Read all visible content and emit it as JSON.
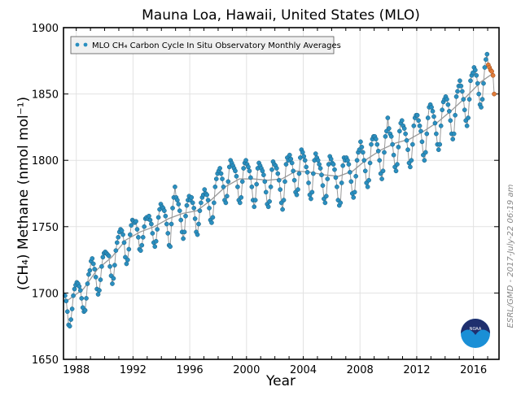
{
  "chart_data": {
    "type": "scatter",
    "title": "Mauna Loa, Hawaii, United States (MLO)",
    "xlabel": "Year",
    "ylabel": "(CH₄) Methane (nmol mol⁻¹)",
    "xlim": [
      1987.1,
      2017.8
    ],
    "ylim": [
      1650,
      1900
    ],
    "xticks": [
      "1988",
      "1992",
      "1996",
      "2000",
      "2004",
      "2008",
      "2012",
      "2016"
    ],
    "yticks": [
      "1650",
      "1700",
      "1750",
      "1800",
      "1850",
      "1900"
    ],
    "grid": true,
    "legend": {
      "position": "top-left",
      "entries": [
        "MLO CH₄ Carbon Cycle In Situ Observatory Monthly Averages"
      ]
    },
    "credit": "ESRL/GMD - 2017-July-22 06:19 am",
    "colors": {
      "monthly": "#2a8fc0",
      "preliminary": "#e07b39",
      "trend": "#999999",
      "connector": "#9a9a9a"
    },
    "series": [
      {
        "name": "MLO CH₄ Carbon Cycle In Situ Observatory Monthly Averages",
        "kind": "monthly",
        "data": [
          {
            "year": 1987,
            "values": [
              null,
              null,
              1698,
              1694,
              1686,
              1676,
              1675,
              1680,
              1688,
              1698,
              1703,
              1706
            ]
          },
          {
            "year": 1988,
            "values": [
              1708,
              1707,
              1705,
              1702,
              1696,
              1689,
              1686,
              1687,
              1696,
              1707,
              1714,
              1717
            ]
          },
          {
            "year": 1989,
            "values": [
              1724,
              1726,
              1722,
              1718,
              1712,
              1703,
              1699,
              1702,
              1710,
              1720,
              1727,
              1730
            ]
          },
          {
            "year": 1990,
            "values": [
              1731,
              1730,
              1729,
              1728,
              1720,
              1713,
              1707,
              1711,
              1721,
              1732,
              1738,
              1742
            ]
          },
          {
            "year": 1991,
            "values": [
              1746,
              1748,
              1747,
              1744,
              1738,
              1727,
              1722,
              1725,
              1733,
              1744,
              1751,
              1755
            ]
          },
          {
            "year": 1992,
            "values": [
              1754,
              1753,
              1754,
              1748,
              1742,
              1733,
              1732,
              1736,
              1742,
              1750,
              1756,
              1757
            ]
          },
          {
            "year": 1993,
            "values": [
              1756,
              1758,
              1755,
              1752,
              1745,
              1738,
              1735,
              1739,
              1748,
              1757,
              1763,
              1767
            ]
          },
          {
            "year": 1994,
            "values": [
              1765,
              1764,
              1762,
              1758,
              1752,
              1745,
              1736,
              1735,
              1752,
              1764,
              1772,
              1780
            ]
          },
          {
            "year": 1995,
            "values": [
              1772,
              1770,
              1767,
              1762,
              1755,
              1746,
              1741,
              1746,
              1758,
              1766,
              1770,
              1773
            ]
          },
          {
            "year": 1996,
            "values": [
              1770,
              1772,
              1768,
              1764,
              1756,
              1746,
              1744,
              1752,
              1762,
              1768,
              1772,
              1774
            ]
          },
          {
            "year": 1997,
            "values": [
              1778,
              1775,
              1774,
              1770,
              1764,
              1755,
              1753,
              1757,
              1768,
              1780,
              1786,
              1790
            ]
          },
          {
            "year": 1998,
            "values": [
              1792,
              1794,
              1790,
              1786,
              1780,
              1770,
              1768,
              1773,
              1784,
              1795,
              1800,
              1798
            ]
          },
          {
            "year": 1999,
            "values": [
              1796,
              1794,
              1792,
              1788,
              1780,
              1770,
              1768,
              1772,
              1784,
              1794,
              1798,
              1800
            ]
          },
          {
            "year": 2000,
            "values": [
              1797,
              1795,
              1792,
              1787,
              1780,
              1770,
              1765,
              1770,
              1782,
              1794,
              1798,
              1796
            ]
          },
          {
            "year": 2001,
            "values": [
              1794,
              1792,
              1789,
              1784,
              1776,
              1767,
              1765,
              1769,
              1780,
              1793,
              1799,
              1797
            ]
          },
          {
            "year": 2002,
            "values": [
              1796,
              1794,
              1790,
              1785,
              1778,
              1768,
              1763,
              1770,
              1784,
              1797,
              1802,
              1800
            ]
          },
          {
            "year": 2003,
            "values": [
              1804,
              1801,
              1798,
              1792,
              1785,
              1776,
              1774,
              1778,
              1790,
              1802,
              1808,
              1806
            ]
          },
          {
            "year": 2004,
            "values": [
              1803,
              1800,
              1795,
              1791,
              1783,
              1774,
              1771,
              1776,
              1790,
              1800,
              1805,
              1802
            ]
          },
          {
            "year": 2005,
            "values": [
              1800,
              1797,
              1794,
              1789,
              1781,
              1771,
              1768,
              1773,
              1786,
              1797,
              1803,
              1801
            ]
          },
          {
            "year": 2006,
            "values": [
              1798,
              1797,
              1793,
              1787,
              1780,
              1770,
              1766,
              1768,
              1783,
              1796,
              1802,
              1800
            ]
          },
          {
            "year": 2007,
            "values": [
              1802,
              1800,
              1797,
              1791,
              1784,
              1775,
              1772,
              1776,
              1788,
              1800,
              1806,
              1808
            ]
          },
          {
            "year": 2008,
            "values": [
              1814,
              1810,
              1806,
              1800,
              1792,
              1783,
              1780,
              1785,
              1798,
              1812,
              1816,
              1818
            ]
          },
          {
            "year": 2009,
            "values": [
              1818,
              1816,
              1812,
              1807,
              1800,
              1790,
              1786,
              1792,
              1806,
              1818,
              1822,
              1832
            ]
          },
          {
            "year": 2010,
            "values": [
              1824,
              1820,
              1818,
              1812,
              1804,
              1795,
              1792,
              1797,
              1810,
              1822,
              1828,
              1830
            ]
          },
          {
            "year": 2011,
            "values": [
              1826,
              1824,
              1820,
              1815,
              1808,
              1798,
              1795,
              1800,
              1812,
              1826,
              1832,
              1834
            ]
          },
          {
            "year": 2012,
            "values": [
              1834,
              1830,
              1826,
              1822,
              1814,
              1804,
              1800,
              1806,
              1820,
              1832,
              1840,
              1842
            ]
          },
          {
            "year": 2013,
            "values": [
              1840,
              1837,
              1833,
              1828,
              1820,
              1812,
              1808,
              1812,
              1826,
              1838,
              1844,
              1846
            ]
          },
          {
            "year": 2014,
            "values": [
              1848,
              1846,
              1842,
              1837,
              1830,
              1820,
              1816,
              1820,
              1834,
              1848,
              1852,
              1856
            ]
          },
          {
            "year": 2015,
            "values": [
              1860,
              1856,
              1852,
              1846,
              1838,
              1830,
              1826,
              1832,
              1846,
              1860,
              1864,
              1866
            ]
          },
          {
            "year": 2016,
            "values": [
              1870,
              1868,
              1864,
              1858,
              1850,
              1842,
              1840,
              1846,
              1858,
              1870,
              1876,
              1880
            ]
          }
        ]
      },
      {
        "kind": "preliminary",
        "data": [
          {
            "year": 2017,
            "values": [
              1872,
              1870,
              1868,
              1867,
              1864,
              1850
            ]
          }
        ]
      },
      {
        "kind": "trend",
        "x": [
          1987.2,
          1988.5,
          1989.5,
          1990.5,
          1991.5,
          1992.5,
          1993.5,
          1994.5,
          1995.5,
          1996.5,
          1997.5,
          1998.5,
          1999.5,
          2000.5,
          2001.5,
          2002.5,
          2003.5,
          2004.5,
          2005.5,
          2006.5,
          2007.5,
          2008.5,
          2009.5,
          2010.5,
          2011.5,
          2012.5,
          2013.5,
          2014.5,
          2015.5,
          2016.5,
          2017.3
        ],
        "values": [
          1693,
          1703,
          1718,
          1727,
          1740,
          1746,
          1750,
          1756,
          1760,
          1762,
          1770,
          1780,
          1786,
          1786,
          1785,
          1786,
          1792,
          1791,
          1789,
          1788,
          1792,
          1801,
          1808,
          1813,
          1816,
          1822,
          1829,
          1838,
          1848,
          1859,
          1865
        ]
      }
    ]
  }
}
